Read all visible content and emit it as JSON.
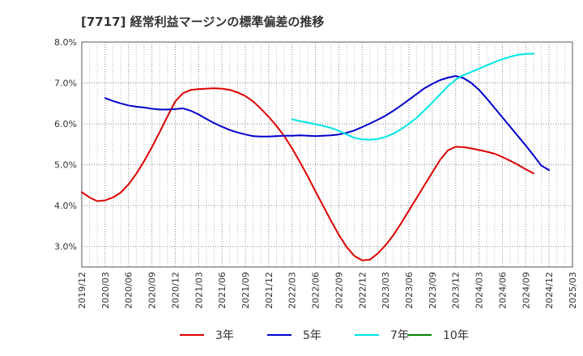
{
  "chart_data": {
    "type": "line",
    "title": "[7717]  経常利益マージンの標準偏差の推移",
    "xlabel": "",
    "ylabel": "",
    "ylim": [
      2.5,
      8.0
    ],
    "y_ticks": [
      "3.0%",
      "4.0%",
      "5.0%",
      "6.0%",
      "7.0%",
      "8.0%"
    ],
    "y_tick_values": [
      3.0,
      4.0,
      5.0,
      6.0,
      7.0,
      8.0
    ],
    "x_ticks": [
      "2019/12",
      "2020/03",
      "2020/06",
      "2020/09",
      "2020/12",
      "2021/03",
      "2021/06",
      "2021/09",
      "2021/12",
      "2022/03",
      "2022/06",
      "2022/09",
      "2022/12",
      "2023/03",
      "2023/06",
      "2023/09",
      "2023/12",
      "2024/03",
      "2024/06",
      "2024/09",
      "2024/12",
      "2025/03"
    ],
    "grid": true,
    "legend_position": "bottom",
    "series": [
      {
        "name": "3年",
        "color": "#dd0000",
        "points": [
          [
            "2019/12",
            4.33
          ],
          [
            "2020/01",
            4.2
          ],
          [
            "2020/02",
            4.11
          ],
          [
            "2020/03",
            4.13
          ],
          [
            "2020/04",
            4.2
          ],
          [
            "2020/05",
            4.32
          ],
          [
            "2020/06",
            4.52
          ],
          [
            "2020/07",
            4.78
          ],
          [
            "2020/08",
            5.09
          ],
          [
            "2020/09",
            5.43
          ],
          [
            "2020/10",
            5.8
          ],
          [
            "2020/11",
            6.18
          ],
          [
            "2020/12",
            6.55
          ],
          [
            "2021/01",
            6.75
          ],
          [
            "2021/02",
            6.83
          ],
          [
            "2021/03",
            6.85
          ],
          [
            "2021/04",
            6.86
          ],
          [
            "2021/05",
            6.87
          ],
          [
            "2021/06",
            6.86
          ],
          [
            "2021/07",
            6.83
          ],
          [
            "2021/08",
            6.77
          ],
          [
            "2021/09",
            6.68
          ],
          [
            "2021/10",
            6.55
          ],
          [
            "2021/11",
            6.37
          ],
          [
            "2021/12",
            6.17
          ],
          [
            "2022/01",
            5.95
          ],
          [
            "2022/02",
            5.7
          ],
          [
            "2022/03",
            5.4
          ],
          [
            "2022/04",
            5.07
          ],
          [
            "2022/05",
            4.72
          ],
          [
            "2022/06",
            4.35
          ],
          [
            "2022/07",
            3.99
          ],
          [
            "2022/08",
            3.63
          ],
          [
            "2022/09",
            3.29
          ],
          [
            "2022/10",
            2.99
          ],
          [
            "2022/11",
            2.77
          ],
          [
            "2022/12",
            2.66
          ],
          [
            "2023/01",
            2.68
          ],
          [
            "2023/02",
            2.83
          ],
          [
            "2023/03",
            3.03
          ],
          [
            "2023/04",
            3.28
          ],
          [
            "2023/05",
            3.57
          ],
          [
            "2023/06",
            3.88
          ],
          [
            "2023/07",
            4.19
          ],
          [
            "2023/08",
            4.5
          ],
          [
            "2023/09",
            4.81
          ],
          [
            "2023/10",
            5.12
          ],
          [
            "2023/11",
            5.35
          ],
          [
            "2023/12",
            5.44
          ],
          [
            "2024/01",
            5.43
          ],
          [
            "2024/02",
            5.4
          ],
          [
            "2024/03",
            5.36
          ],
          [
            "2024/04",
            5.32
          ],
          [
            "2024/05",
            5.27
          ],
          [
            "2024/06",
            5.19
          ],
          [
            "2024/07",
            5.1
          ],
          [
            "2024/08",
            5.0
          ],
          [
            "2024/09",
            4.89
          ],
          [
            "2024/10",
            4.79
          ]
        ]
      },
      {
        "name": "5年",
        "color": "#0000cc",
        "points": [
          [
            "2020/03",
            6.63
          ],
          [
            "2020/04",
            6.56
          ],
          [
            "2020/05",
            6.5
          ],
          [
            "2020/06",
            6.45
          ],
          [
            "2020/07",
            6.42
          ],
          [
            "2020/08",
            6.4
          ],
          [
            "2020/09",
            6.37
          ],
          [
            "2020/10",
            6.35
          ],
          [
            "2020/11",
            6.35
          ],
          [
            "2020/12",
            6.36
          ],
          [
            "2021/01",
            6.38
          ],
          [
            "2021/02",
            6.32
          ],
          [
            "2021/03",
            6.23
          ],
          [
            "2021/04",
            6.12
          ],
          [
            "2021/05",
            6.02
          ],
          [
            "2021/06",
            5.93
          ],
          [
            "2021/07",
            5.85
          ],
          [
            "2021/08",
            5.79
          ],
          [
            "2021/09",
            5.74
          ],
          [
            "2021/10",
            5.7
          ],
          [
            "2021/11",
            5.69
          ],
          [
            "2021/12",
            5.69
          ],
          [
            "2022/01",
            5.7
          ],
          [
            "2022/02",
            5.71
          ],
          [
            "2022/03",
            5.71
          ],
          [
            "2022/04",
            5.72
          ],
          [
            "2022/05",
            5.71
          ],
          [
            "2022/06",
            5.7
          ],
          [
            "2022/07",
            5.71
          ],
          [
            "2022/08",
            5.72
          ],
          [
            "2022/09",
            5.74
          ],
          [
            "2022/10",
            5.78
          ],
          [
            "2022/11",
            5.84
          ],
          [
            "2022/12",
            5.92
          ],
          [
            "2023/01",
            6.01
          ],
          [
            "2023/02",
            6.1
          ],
          [
            "2023/03",
            6.2
          ],
          [
            "2023/04",
            6.32
          ],
          [
            "2023/05",
            6.45
          ],
          [
            "2023/06",
            6.59
          ],
          [
            "2023/07",
            6.73
          ],
          [
            "2023/08",
            6.87
          ],
          [
            "2023/09",
            6.98
          ],
          [
            "2023/10",
            7.07
          ],
          [
            "2023/11",
            7.13
          ],
          [
            "2023/12",
            7.17
          ],
          [
            "2024/01",
            7.12
          ],
          [
            "2024/02",
            7.0
          ],
          [
            "2024/03",
            6.83
          ],
          [
            "2024/04",
            6.62
          ],
          [
            "2024/05",
            6.39
          ],
          [
            "2024/06",
            6.16
          ],
          [
            "2024/07",
            5.93
          ],
          [
            "2024/08",
            5.7
          ],
          [
            "2024/09",
            5.47
          ],
          [
            "2024/10",
            5.23
          ],
          [
            "2024/11",
            4.98
          ],
          [
            "2024/12",
            4.87
          ]
        ]
      },
      {
        "name": "7年",
        "color": "#00e5e5",
        "points": [
          [
            "2022/03",
            6.11
          ],
          [
            "2022/04",
            6.07
          ],
          [
            "2022/05",
            6.03
          ],
          [
            "2022/06",
            5.99
          ],
          [
            "2022/07",
            5.95
          ],
          [
            "2022/08",
            5.9
          ],
          [
            "2022/09",
            5.83
          ],
          [
            "2022/10",
            5.74
          ],
          [
            "2022/11",
            5.66
          ],
          [
            "2022/12",
            5.62
          ],
          [
            "2023/01",
            5.61
          ],
          [
            "2023/02",
            5.63
          ],
          [
            "2023/03",
            5.68
          ],
          [
            "2023/04",
            5.76
          ],
          [
            "2023/05",
            5.87
          ],
          [
            "2023/06",
            6.0
          ],
          [
            "2023/07",
            6.15
          ],
          [
            "2023/08",
            6.33
          ],
          [
            "2023/09",
            6.52
          ],
          [
            "2023/10",
            6.72
          ],
          [
            "2023/11",
            6.92
          ],
          [
            "2023/12",
            7.08
          ],
          [
            "2024/01",
            7.19
          ],
          [
            "2024/02",
            7.27
          ],
          [
            "2024/03",
            7.35
          ],
          [
            "2024/04",
            7.43
          ],
          [
            "2024/05",
            7.51
          ],
          [
            "2024/06",
            7.58
          ],
          [
            "2024/07",
            7.64
          ],
          [
            "2024/08",
            7.69
          ],
          [
            "2024/09",
            7.71
          ],
          [
            "2024/10",
            7.72
          ]
        ]
      },
      {
        "name": "10年",
        "color": "#008000",
        "points": []
      }
    ]
  }
}
